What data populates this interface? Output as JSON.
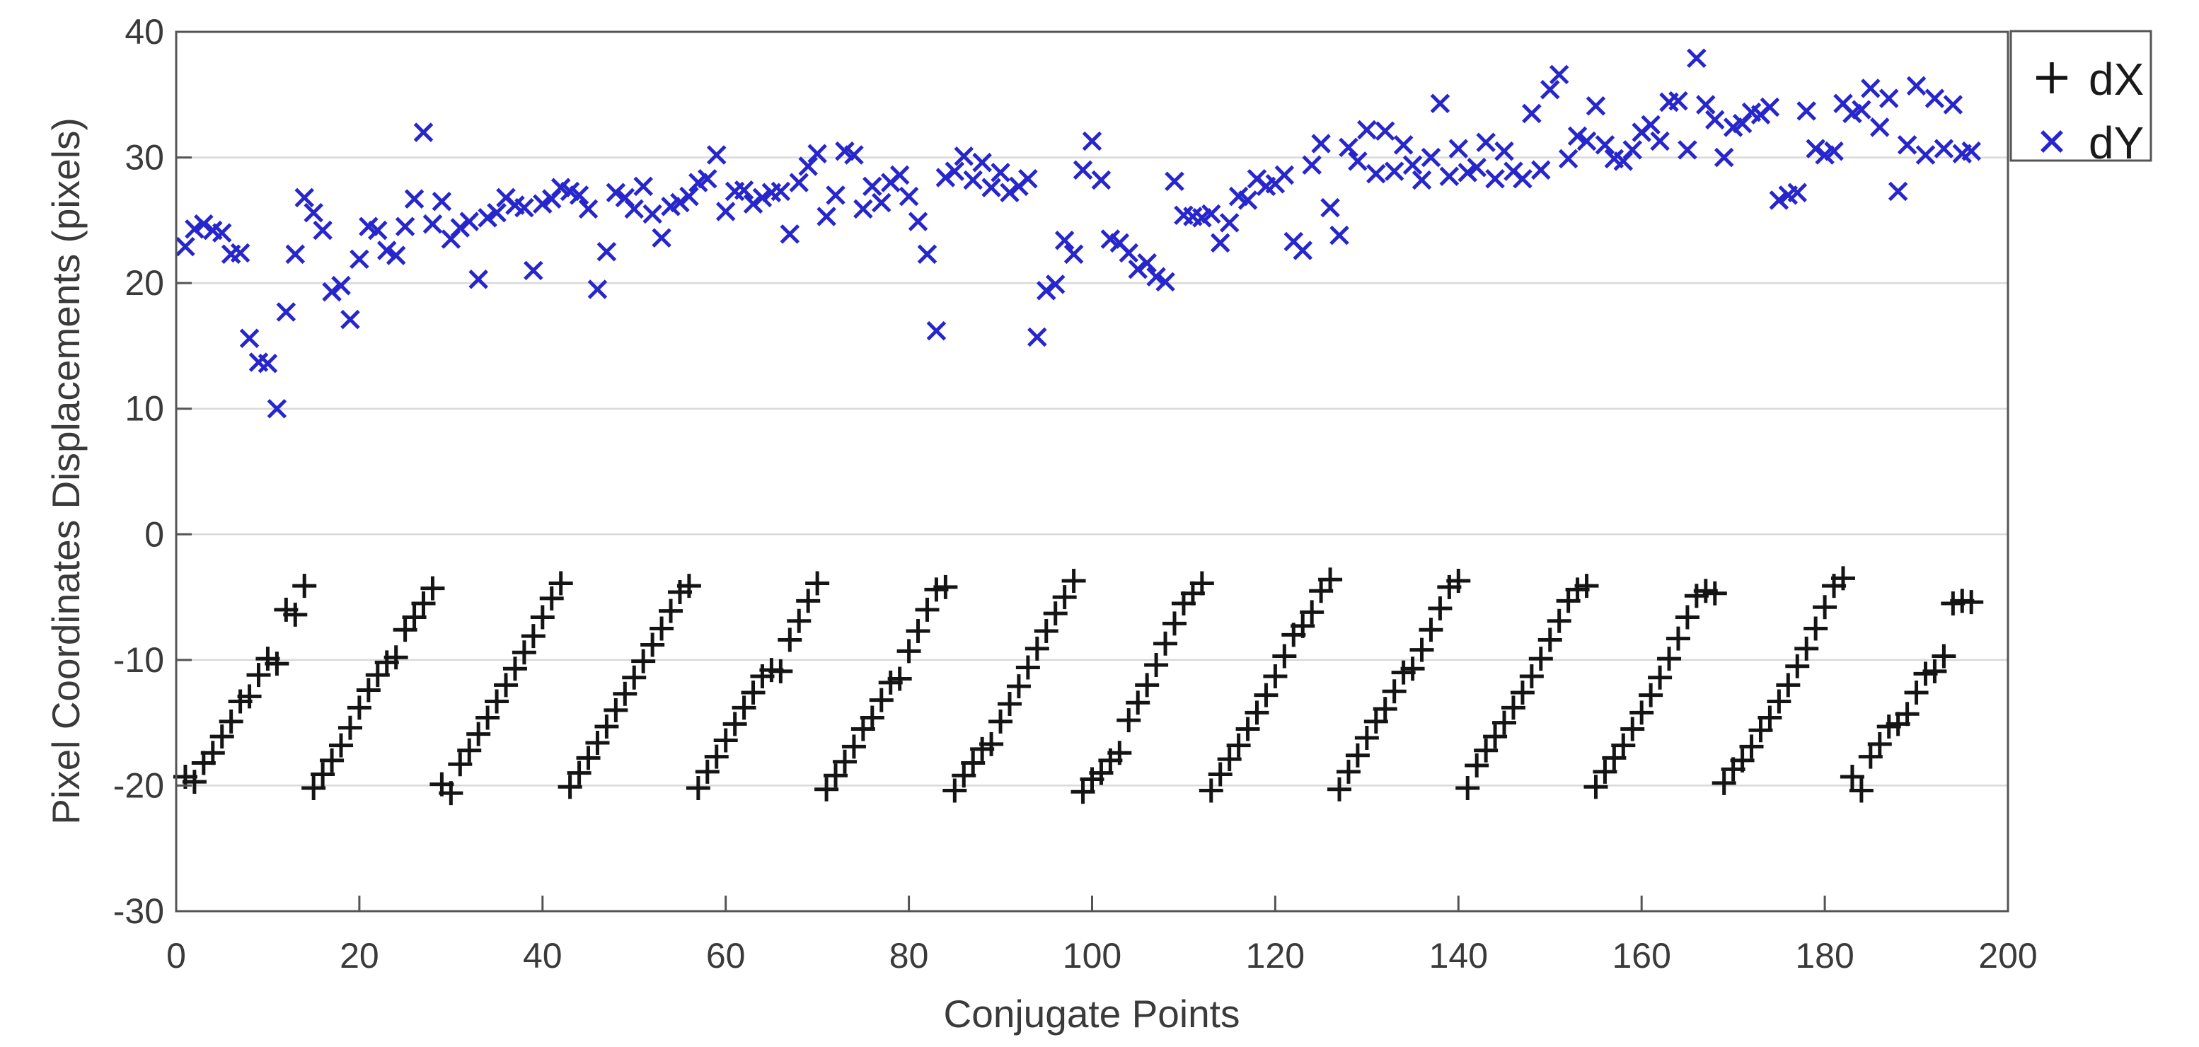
{
  "chart_data": {
    "type": "scatter",
    "title": "",
    "xlabel": "Conjugate Points",
    "ylabel": "Pixel Coordinates Displacements (pixels)",
    "xlim": [
      0,
      200
    ],
    "ylim": [
      -30,
      40
    ],
    "xticks": [
      0,
      20,
      40,
      60,
      80,
      100,
      120,
      140,
      160,
      180,
      200
    ],
    "yticks": [
      -30,
      -20,
      -10,
      0,
      10,
      20,
      30,
      40
    ],
    "grid": "horizontal-only",
    "grid_color": "#d9d9d9",
    "frame_color": "#545454",
    "background": "#ffffff",
    "legend_position": "top-right-outside",
    "series": [
      {
        "name": "dX",
        "marker": "plus",
        "color": "#141414",
        "x_first": 1,
        "x_step": 1,
        "y": [
          -19.3,
          -19.7,
          -18.2,
          -17.4,
          -16.1,
          -14.9,
          -13.3,
          -12.9,
          -11.2,
          -9.9,
          -10.3,
          -6.0,
          -6.4,
          -4.1,
          -20.2,
          -19.1,
          -18.0,
          -16.8,
          -15.4,
          -13.8,
          -12.4,
          -11.2,
          -10.2,
          -9.8,
          -7.6,
          -6.6,
          -5.5,
          -4.3,
          -19.9,
          -20.6,
          -18.3,
          -17.2,
          -15.9,
          -14.6,
          -13.3,
          -12.0,
          -10.7,
          -9.4,
          -8.1,
          -6.6,
          -5.1,
          -3.9,
          -20.1,
          -19.0,
          -17.8,
          -16.6,
          -15.3,
          -14.0,
          -12.7,
          -11.4,
          -10.1,
          -8.8,
          -7.5,
          -6.1,
          -4.6,
          -4.1,
          -20.2,
          -18.9,
          -17.7,
          -16.4,
          -15.1,
          -13.8,
          -12.6,
          -11.3,
          -10.8,
          -10.9,
          -8.4,
          -6.9,
          -5.3,
          -3.9,
          -20.3,
          -19.2,
          -18.1,
          -16.9,
          -15.5,
          -14.6,
          -13.2,
          -11.8,
          -11.5,
          -9.3,
          -7.7,
          -6.0,
          -4.4,
          -4.2,
          -20.4,
          -19.2,
          -18.2,
          -17.1,
          -16.7,
          -14.9,
          -13.5,
          -12.1,
          -10.6,
          -9.1,
          -7.7,
          -6.3,
          -5.0,
          -3.7,
          -20.5,
          -19.5,
          -19.0,
          -18.0,
          -17.4,
          -14.8,
          -13.4,
          -12.0,
          -10.4,
          -8.7,
          -7.1,
          -5.5,
          -4.7,
          -3.9,
          -20.4,
          -19.1,
          -17.9,
          -16.8,
          -15.5,
          -14.2,
          -12.8,
          -11.3,
          -9.7,
          -8.0,
          -7.3,
          -6.2,
          -4.5,
          -3.6,
          -20.3,
          -18.9,
          -17.6,
          -16.2,
          -14.9,
          -13.9,
          -12.5,
          -11.0,
          -10.7,
          -9.2,
          -7.6,
          -5.9,
          -4.2,
          -3.7,
          -20.2,
          -18.4,
          -17.2,
          -16.1,
          -15.0,
          -13.8,
          -12.6,
          -11.3,
          -9.9,
          -8.4,
          -6.9,
          -5.3,
          -4.4,
          -4.1,
          -20.1,
          -18.9,
          -17.8,
          -16.8,
          -15.5,
          -14.2,
          -12.8,
          -11.4,
          -9.9,
          -8.3,
          -6.6,
          -4.9,
          -4.5,
          -4.7,
          -19.8,
          -18.7,
          -18.0,
          -16.9,
          -15.6,
          -14.6,
          -13.3,
          -12.0,
          -10.5,
          -9.1,
          -7.5,
          -5.8,
          -4.1,
          -3.5,
          -19.3,
          -20.4,
          -17.7,
          -16.7,
          -15.3,
          -15.1,
          -14.3,
          -12.6,
          -11.1,
          -10.9,
          -9.7,
          -5.5,
          -5.3,
          -5.4
        ]
      },
      {
        "name": "dY",
        "marker": "cross",
        "color": "#2626cc",
        "x_first": 1,
        "x_step": 1,
        "y": [
          22.9,
          24.3,
          24.7,
          24.2,
          24.0,
          22.3,
          22.4,
          15.6,
          13.7,
          13.6,
          10.0,
          17.7,
          22.3,
          26.8,
          25.6,
          24.2,
          19.3,
          19.8,
          17.1,
          21.9,
          24.5,
          24.2,
          22.6,
          22.2,
          24.5,
          26.7,
          32.0,
          24.7,
          26.5,
          23.5,
          24.4,
          24.9,
          20.3,
          25.2,
          25.6,
          26.8,
          26.2,
          26.0,
          21.0,
          26.3,
          26.7,
          27.6,
          27.3,
          27.0,
          25.9,
          19.5,
          22.5,
          27.2,
          26.8,
          25.9,
          27.7,
          25.5,
          23.6,
          26.1,
          26.4,
          26.9,
          28.0,
          28.3,
          30.2,
          25.7,
          27.3,
          27.4,
          26.3,
          26.8,
          27.2,
          27.3,
          23.9,
          28.0,
          29.3,
          30.3,
          25.3,
          27.0,
          30.5,
          30.2,
          25.9,
          27.7,
          26.4,
          28.0,
          28.6,
          26.9,
          24.9,
          22.3,
          16.2,
          28.4,
          28.9,
          30.1,
          28.2,
          29.6,
          27.6,
          28.8,
          27.2,
          27.7,
          28.3,
          15.7,
          19.4,
          19.9,
          23.4,
          22.3,
          29.0,
          31.3,
          28.2,
          23.5,
          23.2,
          22.4,
          21.1,
          21.6,
          20.5,
          20.1,
          28.1,
          25.4,
          25.3,
          25.2,
          25.5,
          23.2,
          24.8,
          26.9,
          26.6,
          28.3,
          27.7,
          27.9,
          28.6,
          23.3,
          22.6,
          29.4,
          31.1,
          26.0,
          23.8,
          30.8,
          29.7,
          32.2,
          28.7,
          32.1,
          28.9,
          31.0,
          29.4,
          28.2,
          30.0,
          34.3,
          28.5,
          30.7,
          28.8,
          29.2,
          31.2,
          28.3,
          30.5,
          28.9,
          28.3,
          33.5,
          29.0,
          35.4,
          36.6,
          29.9,
          31.7,
          31.3,
          34.1,
          31.0,
          29.9,
          29.7,
          30.6,
          32.0,
          32.6,
          31.3,
          34.4,
          34.5,
          30.6,
          37.9,
          34.2,
          33.0,
          30.0,
          32.4,
          32.7,
          33.6,
          33.4,
          34.0,
          26.6,
          27.0,
          27.2,
          33.7,
          30.7,
          30.2,
          30.5,
          34.3,
          33.5,
          33.8,
          35.5,
          32.4,
          34.7,
          27.3,
          31.0,
          35.7,
          30.2,
          34.7,
          30.7,
          34.2,
          30.3,
          30.5
        ]
      }
    ]
  },
  "legend": {
    "items": [
      {
        "label": "dX",
        "marker": "plus-icon",
        "color": "#141414"
      },
      {
        "label": "dY",
        "marker": "cross-icon",
        "color": "#2626cc"
      }
    ]
  }
}
